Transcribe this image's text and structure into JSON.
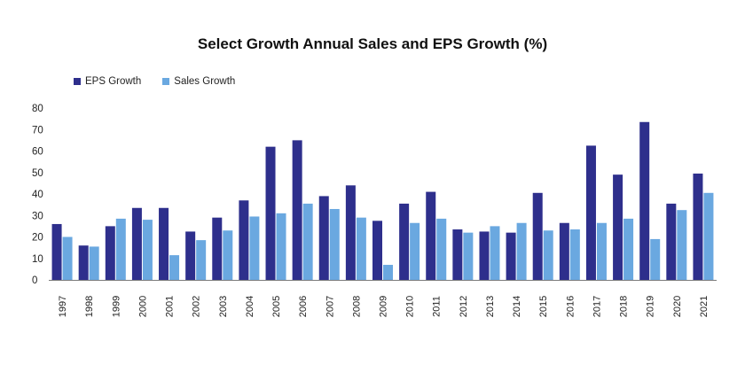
{
  "chart_data": {
    "type": "bar",
    "title": "Select Growth Annual Sales and EPS Growth (%)",
    "xlabel": "",
    "ylabel": "",
    "ylim": [
      0,
      80
    ],
    "yticks": [
      "0",
      "10",
      "20",
      "30",
      "40",
      "50",
      "60",
      "70",
      "80"
    ],
    "categories": [
      "1997",
      "1998",
      "1999",
      "2000",
      "2001",
      "2002",
      "2003",
      "2004",
      "2005",
      "2006",
      "2007",
      "2008",
      "2009",
      "2010",
      "2011",
      "2012",
      "2013",
      "2014",
      "2015",
      "2016",
      "2017",
      "2018",
      "2019",
      "2020",
      "2021"
    ],
    "series": [
      {
        "name": "EPS Growth",
        "color": "#2e2f8c",
        "values": [
          26,
          16,
          25,
          33.5,
          33.5,
          22.5,
          29,
          37,
          62,
          65,
          39,
          44,
          27.5,
          35.5,
          41,
          23.5,
          22.5,
          22,
          40.5,
          26.5,
          62.5,
          49,
          73.5,
          35.5,
          49.5
        ]
      },
      {
        "name": "Sales Growth",
        "color": "#6aa8e0",
        "values": [
          20,
          15.5,
          28.5,
          28,
          11.5,
          18.5,
          23,
          29.5,
          31,
          35.5,
          33,
          29,
          7,
          26.5,
          28.5,
          22,
          25,
          26.5,
          23,
          23.5,
          26.5,
          28.5,
          19,
          32.5,
          40.5
        ]
      }
    ],
    "grid": false,
    "legend_position": "top-left"
  }
}
